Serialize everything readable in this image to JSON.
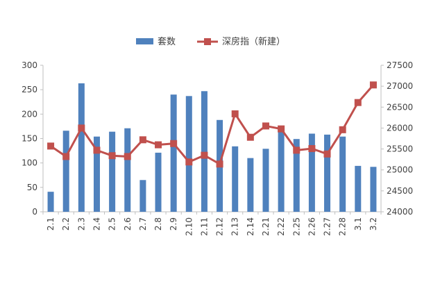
{
  "chart_data": {
    "type": "bar",
    "categories": [
      "2.1",
      "2.2",
      "2.3",
      "2.4",
      "2.5",
      "2.6",
      "2.7",
      "2.8",
      "2.9",
      "2.10",
      "2.11",
      "2.12",
      "2.13",
      "2.14",
      "2.21",
      "2.22",
      "2.25",
      "2.26",
      "2.27",
      "2.28",
      "3.1",
      "3.2"
    ],
    "series": [
      {
        "name": "套数",
        "type": "bar",
        "axis": "left",
        "color": "#4F81BD",
        "values": [
          41,
          166,
          263,
          154,
          164,
          171,
          65,
          121,
          240,
          237,
          247,
          188,
          134,
          110,
          129,
          164,
          149,
          160,
          158,
          154,
          94,
          92
        ]
      },
      {
        "name": "深房指（新建）",
        "type": "line",
        "axis": "right",
        "color": "#C0504D",
        "marker": "square",
        "values": [
          25570,
          25320,
          26000,
          25470,
          25340,
          25320,
          25720,
          25600,
          25630,
          25190,
          25350,
          25140,
          26340,
          25780,
          26050,
          25980,
          25470,
          25510,
          25380,
          25960,
          26610,
          27030
        ]
      }
    ],
    "y_left": {
      "min": 0,
      "max": 300,
      "ticks": [
        0,
        50,
        100,
        150,
        200,
        250,
        300
      ]
    },
    "y_right": {
      "min": 24000,
      "max": 27500,
      "ticks": [
        24000,
        24500,
        25000,
        25500,
        26000,
        26500,
        27000,
        27500
      ]
    },
    "grid": false,
    "legend": "top-center",
    "title": "",
    "xlabel": "",
    "ylabel": ""
  }
}
